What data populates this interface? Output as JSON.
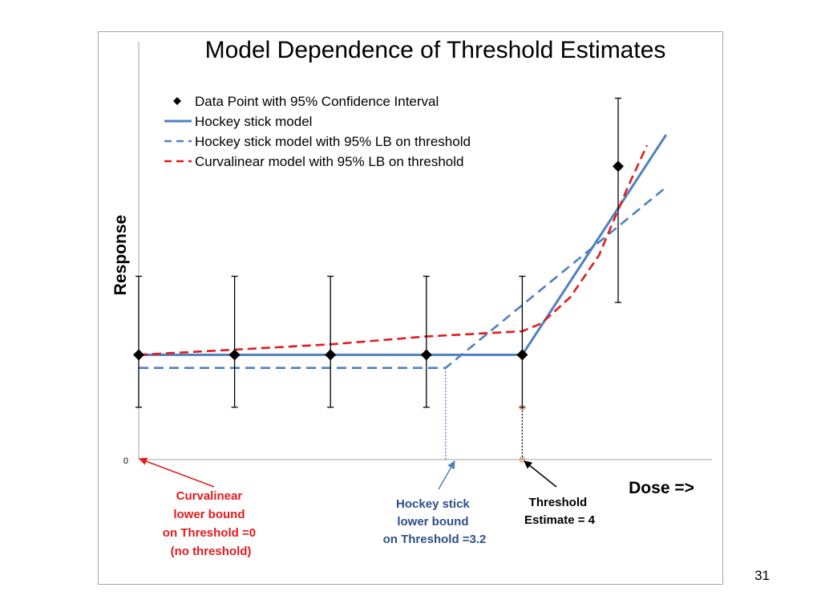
{
  "chart_data": {
    "type": "line",
    "title": "Model Dependence of Threshold Estimates",
    "ylabel": "Response",
    "xlabel": "Dose =>",
    "y_tick_label": "0",
    "x": [
      0,
      1,
      2,
      3,
      4,
      5
    ],
    "series": [
      {
        "name": "Data Point with 95% Confidence Interval",
        "kind": "points",
        "color": "#000000",
        "x": [
          0,
          1,
          2,
          3,
          4,
          5
        ],
        "y": [
          2,
          2,
          2,
          2,
          2,
          5.6
        ],
        "lower": [
          1,
          1,
          1,
          1,
          1,
          3
        ],
        "upper": [
          3.5,
          3.5,
          3.5,
          3.5,
          3.5,
          6.9
        ]
      },
      {
        "name": "Hockey stick model",
        "kind": "line",
        "color": "#4f81bd",
        "dash": "solid",
        "x": [
          0,
          4,
          5.5
        ],
        "y": [
          2,
          2,
          6.2
        ]
      },
      {
        "name": "Hockey stick model with 95% LB on threshold",
        "kind": "line",
        "color": "#4f81bd",
        "dash": "dashed",
        "x": [
          0,
          3.2,
          5.5
        ],
        "y": [
          1.75,
          1.75,
          5.2
        ]
      },
      {
        "name": "Curvalinear model with 95% LB on threshold",
        "kind": "line",
        "color": "#e41a1c",
        "dash": "dashed",
        "x": [
          0,
          1,
          2,
          3,
          4,
          4.2,
          4.5,
          4.8,
          5.1,
          5.3
        ],
        "y": [
          2,
          2.1,
          2.2,
          2.35,
          2.45,
          2.6,
          3.1,
          3.9,
          5.2,
          6
        ]
      }
    ],
    "markers": {
      "threshold_estimate_x": 4,
      "threshold_estimate_top": 1,
      "hockey_lb_x": 3.2,
      "hockey_lb_top": 1.75
    }
  },
  "annotations": {
    "curvalinear": [
      "Curvalinear",
      "lower bound",
      "on Threshold =0",
      "(no threshold)"
    ],
    "hockey": [
      "Hockey stick",
      "lower bound",
      "on Threshold =3.2"
    ],
    "threshold": [
      "Threshold",
      "Estimate = 4"
    ]
  },
  "colors": {
    "blue_annotation": "#2e4f86",
    "red_annotation": "#e41a1c",
    "black_annotation": "#000000"
  },
  "slide": {
    "page_number": "31"
  }
}
